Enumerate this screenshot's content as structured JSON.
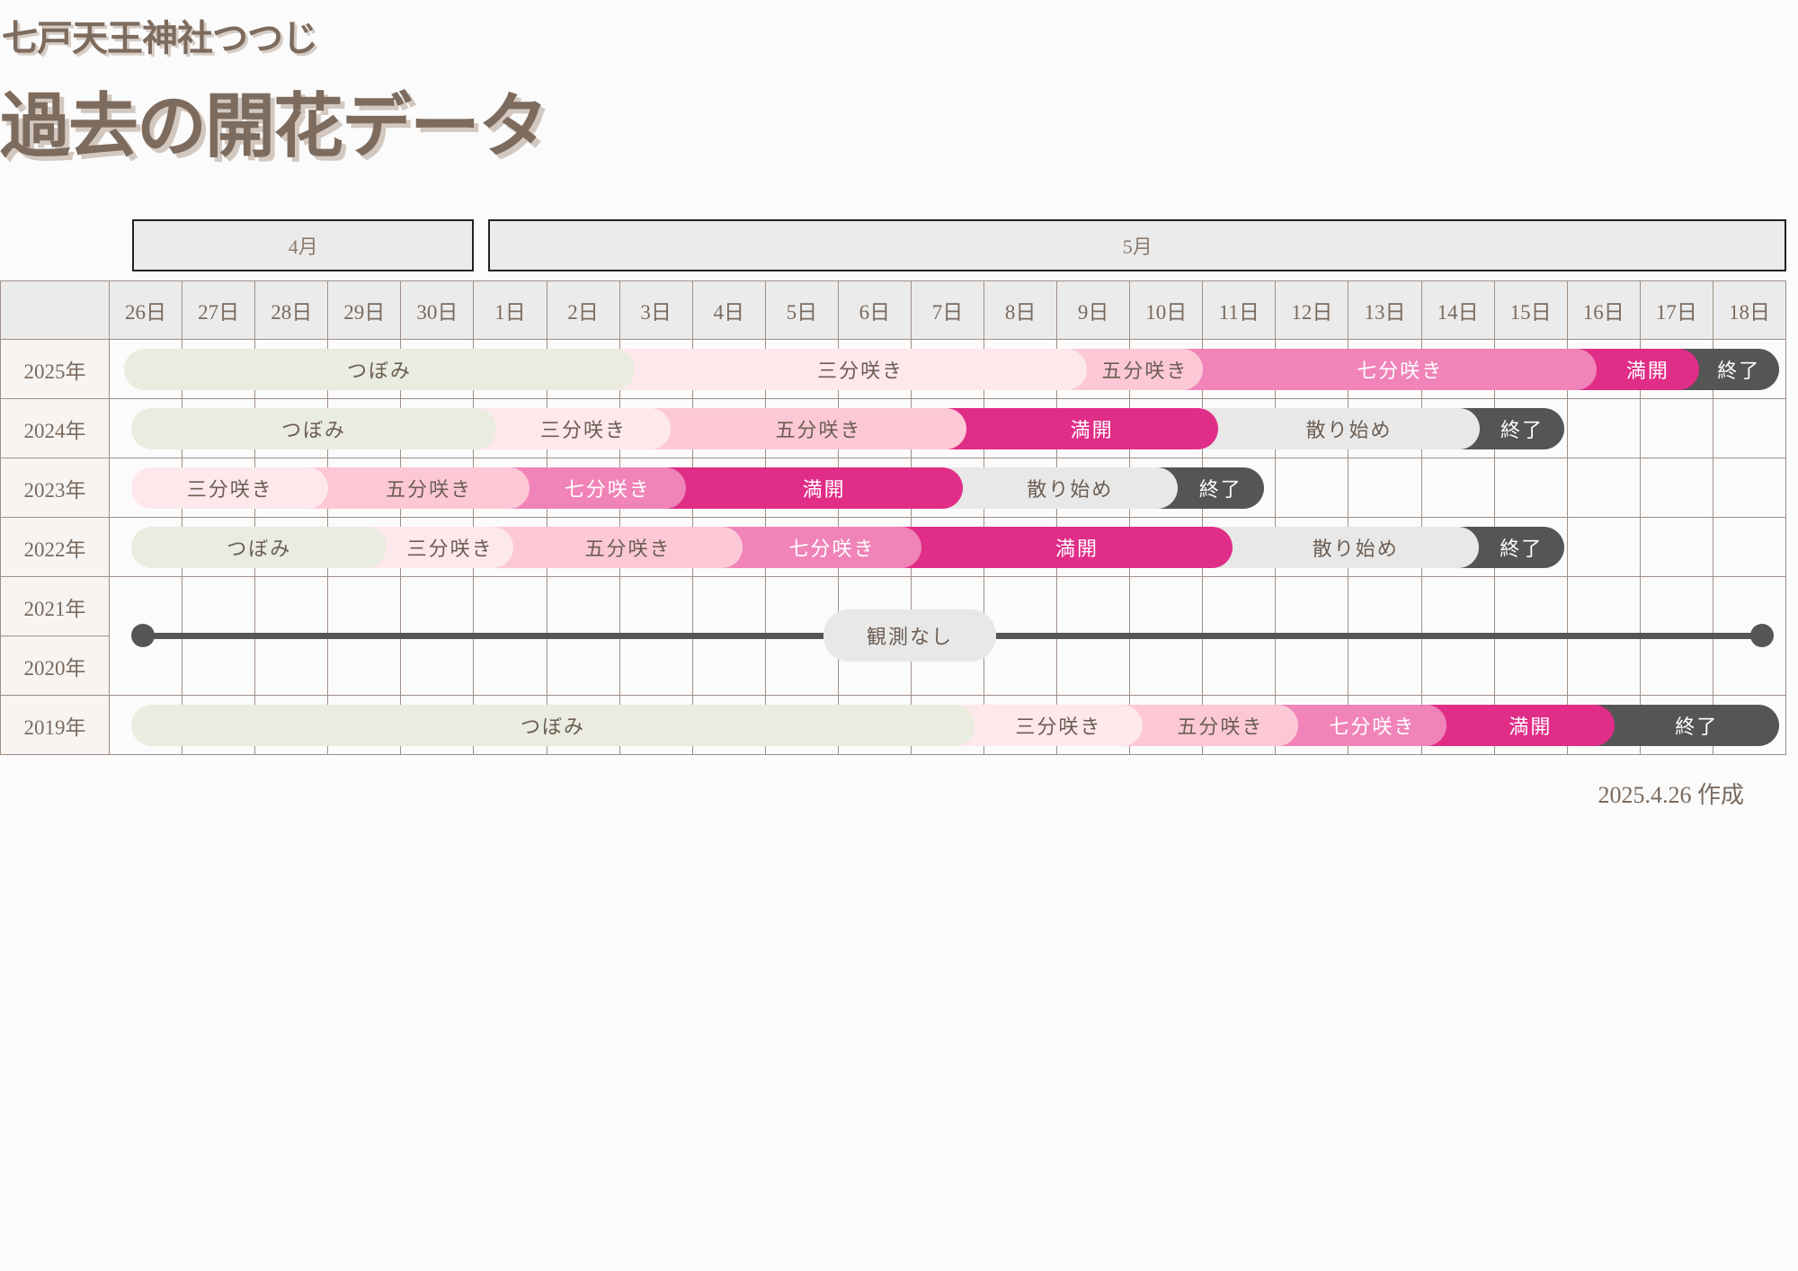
{
  "header": {
    "subtitle": "七戸天王神社つつじ",
    "title": "過去の開花データ"
  },
  "footer": {
    "created": "2025.4.26 作成"
  },
  "chart_data": {
    "type": "gantt",
    "months": [
      {
        "label": "4月",
        "days": 5
      },
      {
        "label": "5月",
        "days": 18
      }
    ],
    "days": [
      "26日",
      "27日",
      "28日",
      "29日",
      "30日",
      "1日",
      "2日",
      "3日",
      "4日",
      "5日",
      "6日",
      "7日",
      "8日",
      "9日",
      "10日",
      "11日",
      "12日",
      "13日",
      "14日",
      "15日",
      "16日",
      "17日",
      "18日"
    ],
    "stage_colors": {
      "つぼみ": {
        "bg": "#e9ecdf",
        "fg": "#6b5d53"
      },
      "三分咲き": {
        "bg": "#fde8ec",
        "fg": "#6b5d53"
      },
      "五分咲き": {
        "bg": "#fdc8d5",
        "fg": "#6b5d53"
      },
      "七分咲き": {
        "bg": "#f084b8",
        "fg": "#ffffff"
      },
      "満開": {
        "bg": "#e02d87",
        "fg": "#ffffff"
      },
      "散り始め": {
        "bg": "#e8e8e8",
        "fg": "#6b5d53"
      },
      "終了": {
        "bg": "#555555",
        "fg": "#ffffff"
      }
    },
    "rows": [
      {
        "year": "2025年",
        "start": "4/26.2",
        "segments": [
          {
            "stage": "つぼみ",
            "end": "5/3.2"
          },
          {
            "stage": "三分咲き",
            "end": "5/9.4"
          },
          {
            "stage": "五分咲き",
            "end": "5/11.0"
          },
          {
            "stage": "七分咲き",
            "end": "5/16.4"
          },
          {
            "stage": "満開",
            "end": "5/17.8"
          },
          {
            "stage": "終了",
            "end": "5/18.9"
          }
        ]
      },
      {
        "year": "2024年",
        "start": "4/26.3",
        "segments": [
          {
            "stage": "つぼみ",
            "end": "5/1.3"
          },
          {
            "stage": "三分咲き",
            "end": "5/3.7"
          },
          {
            "stage": "五分咲き",
            "end": "5/7.75"
          },
          {
            "stage": "満開",
            "end": "5/11.2"
          },
          {
            "stage": "散り始め",
            "end": "5/14.8"
          },
          {
            "stage": "終了",
            "end": "5/15.95"
          }
        ]
      },
      {
        "year": "2023年",
        "start": "4/26.3",
        "segments": [
          {
            "stage": "三分咲き",
            "end": "4/29.0"
          },
          {
            "stage": "五分咲き",
            "end": "5/1.76"
          },
          {
            "stage": "七分咲き",
            "end": "5/3.9"
          },
          {
            "stage": "満開",
            "end": "5/7.7"
          },
          {
            "stage": "散り始め",
            "end": "5/10.65"
          },
          {
            "stage": "終了",
            "end": "5/11.83"
          }
        ]
      },
      {
        "year": "2022年",
        "start": "4/26.3",
        "segments": [
          {
            "stage": "つぼみ",
            "end": "4/29.8"
          },
          {
            "stage": "三分咲き",
            "end": "5/1.54"
          },
          {
            "stage": "五分咲き",
            "end": "5/4.68"
          },
          {
            "stage": "七分咲き",
            "end": "5/7.14"
          },
          {
            "stage": "満開",
            "end": "5/11.4"
          },
          {
            "stage": "散り始め",
            "end": "5/14.78"
          },
          {
            "stage": "終了",
            "end": "5/15.95"
          }
        ]
      },
      {
        "year": "2021年",
        "segments": []
      },
      {
        "year": "2020年",
        "segments": []
      },
      {
        "year": "2019年",
        "start": "4/26.3",
        "segments": [
          {
            "stage": "つぼみ",
            "end": "5/7.86"
          },
          {
            "stage": "三分咲き",
            "end": "5/10.17"
          },
          {
            "stage": "五分咲き",
            "end": "5/12.3"
          },
          {
            "stage": "七分咲き",
            "end": "5/14.34"
          },
          {
            "stage": "満開",
            "end": "5/16.64"
          },
          {
            "stage": "終了",
            "end": "5/18.9"
          }
        ]
      }
    ],
    "no_observation": {
      "years": [
        "2021年",
        "2020年"
      ],
      "label": "観測なし"
    }
  }
}
